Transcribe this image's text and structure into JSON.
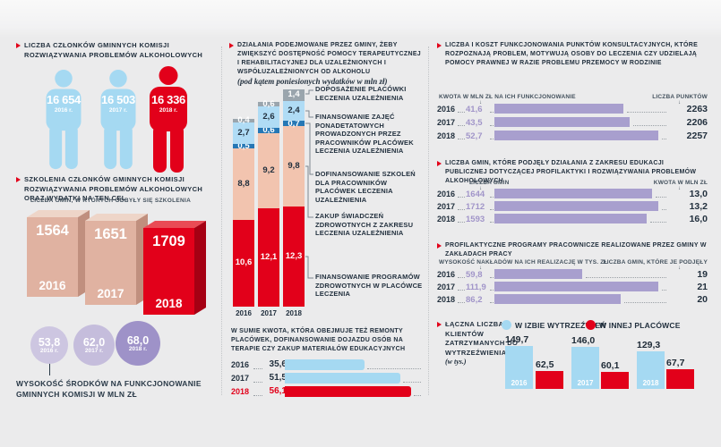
{
  "colors": {
    "red": "#e2001a",
    "light_blue": "#a5d9f2",
    "stacked_light_blue": "#b0dcf5",
    "dark_blue": "#2577b5",
    "pink": "#f2c4af",
    "gray_segment": "#9aa5ad",
    "purple_bar": "#a89fce",
    "purple_value_text": "#a195c9",
    "dark_text": "#22303e"
  },
  "icons": {
    "arrow_down": "↓",
    "person": "person-pictogram",
    "bullet": "red-chevron"
  },
  "left": {
    "members": {
      "title": "LICZBA CZŁONKÓW GMINNYCH KOMISJI ROZWIĄZYWANIA PROBLEMÓW ALKOHOLOWYCH",
      "people": [
        {
          "value": "16 654",
          "year": "2016 r.",
          "color": "#a5d9f2"
        },
        {
          "value": "16 503",
          "year": "2017 r.",
          "color": "#a5d9f2"
        },
        {
          "value": "16 336",
          "year": "2018 r.",
          "color": "#e2001a"
        }
      ]
    },
    "trainings": {
      "title": "SZKOLENIA CZŁONKÓW GMINNYCH KOMISJI ROZWIĄZYWANIA PROBLEMÓW ALKOHOLOWYCH ORAZ WYDATKI NA TEN CEL",
      "sublabel": "LICZBA GMIN, W KTÓRYCH ODBYŁY SIĘ SZKOLENIA",
      "bars": [
        {
          "value": 1564,
          "label": "1564",
          "year": "2016",
          "front": "#e0b2a1",
          "top": "#eed5c8",
          "side": "#c08f7e"
        },
        {
          "value": 1651,
          "label": "1651",
          "year": "2017",
          "front": "#e0b2a1",
          "top": "#eed5c8",
          "side": "#c08f7e"
        },
        {
          "value": 1709,
          "label": "1709",
          "year": "2018",
          "front": "#e2001a",
          "top": "#e94b55",
          "side": "#a50013"
        }
      ]
    },
    "funds": {
      "circles": [
        {
          "label": "53,8",
          "year": "2016 r.",
          "color": "#cdc6e1",
          "d": 42
        },
        {
          "label": "62,0",
          "year": "2017 r.",
          "color": "#c5bddc",
          "d": 46
        },
        {
          "label": "68,0",
          "year": "2018 r.",
          "color": "#9e92c8",
          "d": 50
        }
      ],
      "caption": "WYSOKOŚĆ ŚRODKÓW NA FUNKCJONOWANIE GMINNYCH KOMISJI W MLN ZŁ"
    }
  },
  "middle": {
    "title": "DZIAŁANIA PODEJMOWANE PRZEZ GMINY, ŻEBY ZWIĘKSZYĆ DOSTĘPNOŚĆ POMOCY TERAPEUTYCZNEJ I REHABILITACYJNEJ DLA UZALEŻNIONYCH I WSPÓŁUZALEŻNIONYCH OD ALKOHOLU",
    "subtitle": "(pod kątem poniesionych wydatków w mln zł)",
    "stacked": {
      "years": [
        "2016",
        "2017",
        "2018"
      ],
      "segments": [
        {
          "name": "FINANSOWANIE PROGRAMÓW ZDROWOTNYCH W PLACÓWCE LECZENIA",
          "color": "#e2001a",
          "text_color": "#ffffff",
          "values": [
            10.6,
            12.1,
            12.3
          ],
          "labels": [
            "10,6",
            "12,1",
            "12,3"
          ]
        },
        {
          "name": "ZAKUP ŚWIADCZEŃ ZDROWOTNYCH Z ZAKRESU LECZENIA UZALEŻNIENIA",
          "color": "#f2c4af",
          "text_color": "#22303e",
          "values": [
            8.8,
            9.2,
            9.8
          ],
          "labels": [
            "8,8",
            "9,2",
            "9,8"
          ]
        },
        {
          "name": "DOFINANSOWANIE SZKOLEŃ DLA PRACOWNIKÓW PLACÓWEK LECZENIA UZALEŻNIENIA",
          "color": "#2577b5",
          "text_color": "#ffffff",
          "values": [
            0.5,
            0.6,
            0.7
          ],
          "labels": [
            "0,5",
            "0,6",
            "0,7"
          ]
        },
        {
          "name": "FINANSOWANIE ZAJĘĆ PONADETATOWYCH PROWADZONYCH PRZEZ PRACOWNIKÓW PLACÓWEK LECZENIA UZALEŻNIENIA",
          "color": "#b0dcf5",
          "text_color": "#22303e",
          "values": [
            2.7,
            2.6,
            2.4
          ],
          "labels": [
            "2,7",
            "2,6",
            "2,4"
          ]
        },
        {
          "name": "DOPOSAŻENIE PLACÓWKI LECZENIA UZALEŻNIENIA",
          "color": "#9aa5ad",
          "text_color": "#ffffff",
          "values": [
            0.4,
            0.6,
            1.4
          ],
          "labels": [
            "0,4",
            "0,6",
            "1,4"
          ]
        }
      ]
    },
    "total": {
      "title": "W SUMIE KWOTA, KTÓRA OBEJMUJE TEŻ REMONTY PLACÓWEK, DOFINANSOWANIE DOJAZDU OSÓB NA TERAPIE CZY ZAKUP MATERIAŁÓW EDUKACYJNYCH",
      "rows": [
        {
          "year": "2016",
          "label": "35,6",
          "value": 35.6,
          "bar_color": "#a5d9f2",
          "text_color": "#22303e"
        },
        {
          "year": "2017",
          "label": "51,5",
          "value": 51.5,
          "bar_color": "#a5d9f2",
          "text_color": "#22303e"
        },
        {
          "year": "2018",
          "label": "56,1",
          "value": 56.1,
          "bar_color": "#e2001a",
          "text_color": "#e2001a"
        }
      ]
    }
  },
  "right": {
    "sections": [
      {
        "title": "LICZBA I KOSZT FUNKCJONOWANIA PUNKTÓW KONSULTACYJNYCH, KTÓRE ROZPOZNAJĄ PROBLEM, MOTYWUJĄ OSOBY DO LECZENIA CZY UDZIELAJĄ POMOCY PRAWNEJ W RAZIE PROBLEMU PRZEMOCY W RODZINIE",
        "left_header": "KWOTA W MLN ZŁ NA ICH FUNKCJONOWANIE",
        "right_header": "LICZBA PUNKTÓW",
        "rows": [
          {
            "year": "2016",
            "value_label": "41,6",
            "value": 41.6,
            "right": "2263"
          },
          {
            "year": "2017",
            "value_label": "43,5",
            "value": 43.5,
            "right": "2206"
          },
          {
            "year": "2018",
            "value_label": "52,7",
            "value": 52.7,
            "right": "2257"
          }
        ]
      },
      {
        "title": "LICZBA GMIN, KTÓRE PODJĘŁY DZIAŁANIA Z ZAKRESU EDUKACJI PUBLICZNEJ DOTYCZĄCEJ PROFILAKTYKI I ROZWIĄZYWANIA PROBLEMÓW ALKOHOLOWYCH",
        "left_header": "LICZBA GMIN",
        "right_header": "KWOTA W MLN ZŁ",
        "rows": [
          {
            "year": "2016",
            "value_label": "1644",
            "value": 1644,
            "right": "13,0"
          },
          {
            "year": "2017",
            "value_label": "1712",
            "value": 1712,
            "right": "13,2"
          },
          {
            "year": "2018",
            "value_label": "1593",
            "value": 1593,
            "right": "16,0"
          }
        ]
      },
      {
        "title": "PROFILAKTYCZNE PROGRAMY PRACOWNICZE REALIZOWANE PRZEZ GMINY W ZAKŁADACH PRACY",
        "left_header": "WYSOKOŚĆ NAKŁADÓW NA ICH REALIZACJĘ W TYS. ZŁ",
        "right_header": "LICZBA GMIN, KTÓRE JE PODJĘŁY",
        "rows": [
          {
            "year": "2016",
            "value_label": "59,8",
            "value": 59.8,
            "right": "19"
          },
          {
            "year": "2017",
            "value_label": "111,9",
            "value": 111.9,
            "right": "21"
          },
          {
            "year": "2018",
            "value_label": "86,2",
            "value": 86.2,
            "right": "20"
          }
        ]
      }
    ],
    "detained": {
      "title": "ŁĄCZNA LICZBA KLIENTÓW ZATRZYMANYCH DO WYTRZEŹWIENIA",
      "subtitle": "(w tys.)",
      "legend": [
        {
          "label": "W IZBIE WYTRZEŹWIEŃ",
          "color": "#a5d9f2"
        },
        {
          "label": "W INNEJ PLACÓWCE",
          "color": "#e2001a"
        }
      ],
      "groups": [
        {
          "year": "2016",
          "blue": 149.7,
          "blue_label": "149,7",
          "red": 62.5,
          "red_label": "62,5"
        },
        {
          "year": "2017",
          "blue": 146.0,
          "blue_label": "146,0",
          "red": 60.1,
          "red_label": "60,1"
        },
        {
          "year": "2018",
          "blue": 129.3,
          "blue_label": "129,3",
          "red": 67.7,
          "red_label": "67,7"
        }
      ]
    }
  },
  "chart_data": [
    {
      "type": "bar",
      "subtype": "pictogram",
      "title": "LICZBA CZŁONKÓW GMINNYCH KOMISJI ROZWIĄZYWANIA PROBLEMÓW ALKOHOLOWYCH",
      "categories": [
        "2016",
        "2017",
        "2018"
      ],
      "values": [
        16654,
        16503,
        16336
      ]
    },
    {
      "type": "bar",
      "subtype": "3d-column",
      "title": "LICZBA GMIN, W KTÓRYCH ODBYŁY SIĘ SZKOLENIA",
      "categories": [
        "2016",
        "2017",
        "2018"
      ],
      "values": [
        1564,
        1651,
        1709
      ]
    },
    {
      "type": "bar",
      "subtype": "bubble",
      "title": "WYSOKOŚĆ ŚRODKÓW NA FUNKCJONOWANIE GMINNYCH KOMISJI W MLN ZŁ",
      "categories": [
        "2016",
        "2017",
        "2018"
      ],
      "values": [
        53.8,
        62.0,
        68.0
      ]
    },
    {
      "type": "bar",
      "subtype": "stacked-column",
      "title": "DZIAŁANIA PODEJMOWANE PRZEZ GMINY (wydatki w mln zł)",
      "categories": [
        "2016",
        "2017",
        "2018"
      ],
      "series": [
        {
          "name": "FINANSOWANIE PROGRAMÓW ZDROWOTNYCH W PLACÓWCE LECZENIA",
          "values": [
            10.6,
            12.1,
            12.3
          ]
        },
        {
          "name": "ZAKUP ŚWIADCZEŃ ZDROWOTNYCH Z ZAKRESU LECZENIA UZALEŻNIENIA",
          "values": [
            8.8,
            9.2,
            9.8
          ]
        },
        {
          "name": "DOFINANSOWANIE SZKOLEŃ DLA PRACOWNIKÓW PLACÓWEK LECZENIA UZALEŻNIENIA",
          "values": [
            0.5,
            0.6,
            0.7
          ]
        },
        {
          "name": "FINANSOWANIE ZAJĘĆ PONADETATOWYCH PROWADZONYCH PRZEZ PRACOWNIKÓW PLACÓWEK LECZENIA UZALEŻNIENIA",
          "values": [
            2.7,
            2.6,
            2.4
          ]
        },
        {
          "name": "DOPOSAŻENIE PLACÓWKI LECZENIA UZALEŻNIENIA",
          "values": [
            0.4,
            0.6,
            1.4
          ]
        }
      ]
    },
    {
      "type": "bar",
      "orientation": "horizontal",
      "title": "W SUMIE KWOTA (remonty placówek, dojazdy na terapie, materiały edukacyjne)",
      "categories": [
        "2016",
        "2017",
        "2018"
      ],
      "values": [
        35.6,
        51.5,
        56.1
      ]
    },
    {
      "type": "bar",
      "orientation": "horizontal",
      "title": "LICZBA I KOSZT FUNKCJONOWANIA PUNKTÓW KONSULTACYJNYCH",
      "categories": [
        "2016",
        "2017",
        "2018"
      ],
      "series": [
        {
          "name": "KWOTA W MLN ZŁ NA ICH FUNKCJONOWANIE",
          "values": [
            41.6,
            43.5,
            52.7
          ]
        },
        {
          "name": "LICZBA PUNKTÓW",
          "values": [
            2263,
            2206,
            2257
          ]
        }
      ]
    },
    {
      "type": "bar",
      "orientation": "horizontal",
      "title": "LICZBA GMIN — EDUKACJA PUBLICZNA",
      "categories": [
        "2016",
        "2017",
        "2018"
      ],
      "series": [
        {
          "name": "LICZBA GMIN",
          "values": [
            1644,
            1712,
            1593
          ]
        },
        {
          "name": "KWOTA W MLN ZŁ",
          "values": [
            13.0,
            13.2,
            16.0
          ]
        }
      ]
    },
    {
      "type": "bar",
      "orientation": "horizontal",
      "title": "PROFILAKTYCZNE PROGRAMY PRACOWNICZE",
      "categories": [
        "2016",
        "2017",
        "2018"
      ],
      "series": [
        {
          "name": "WYSOKOŚĆ NAKŁADÓW NA ICH REALIZACJĘ W TYS. ZŁ",
          "values": [
            59.8,
            111.9,
            86.2
          ]
        },
        {
          "name": "LICZBA GMIN, KTÓRE JE PODJĘŁY",
          "values": [
            19,
            21,
            20
          ]
        }
      ]
    },
    {
      "type": "bar",
      "subtype": "grouped-column",
      "title": "ŁĄCZNA LICZBA KLIENTÓW ZATRZYMANYCH DO WYTRZEŹWIENIA (w tys.)",
      "categories": [
        "2016",
        "2017",
        "2018"
      ],
      "series": [
        {
          "name": "W IZBIE WYTRZEŹWIEŃ",
          "values": [
            149.7,
            146.0,
            129.3
          ]
        },
        {
          "name": "W INNEJ PLACÓWCE",
          "values": [
            62.5,
            60.1,
            67.7
          ]
        }
      ],
      "legend_position": "top"
    }
  ]
}
